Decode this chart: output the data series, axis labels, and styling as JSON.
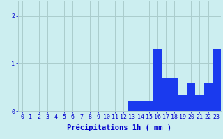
{
  "hours": [
    0,
    1,
    2,
    3,
    4,
    5,
    6,
    7,
    8,
    9,
    10,
    11,
    12,
    13,
    14,
    15,
    16,
    17,
    18,
    19,
    20,
    21,
    22,
    23
  ],
  "values": [
    0,
    0,
    0,
    0,
    0,
    0,
    0,
    0,
    0,
    0,
    0,
    0,
    0,
    0.2,
    0.2,
    0.2,
    1.3,
    0.7,
    0.7,
    0.35,
    0.6,
    0.35,
    0.6,
    1.3
  ],
  "bar_color": "#1a3aee",
  "background_color": "#cceef0",
  "grid_color": "#aacccc",
  "axis_label_color": "#0000cc",
  "xlabel": "Précipitations 1h ( mm )",
  "xlabel_fontsize": 7.5,
  "tick_fontsize": 6,
  "yticks": [
    0,
    1,
    2
  ],
  "ylim": [
    0,
    2.3
  ],
  "xlim": [
    -0.5,
    23.5
  ]
}
